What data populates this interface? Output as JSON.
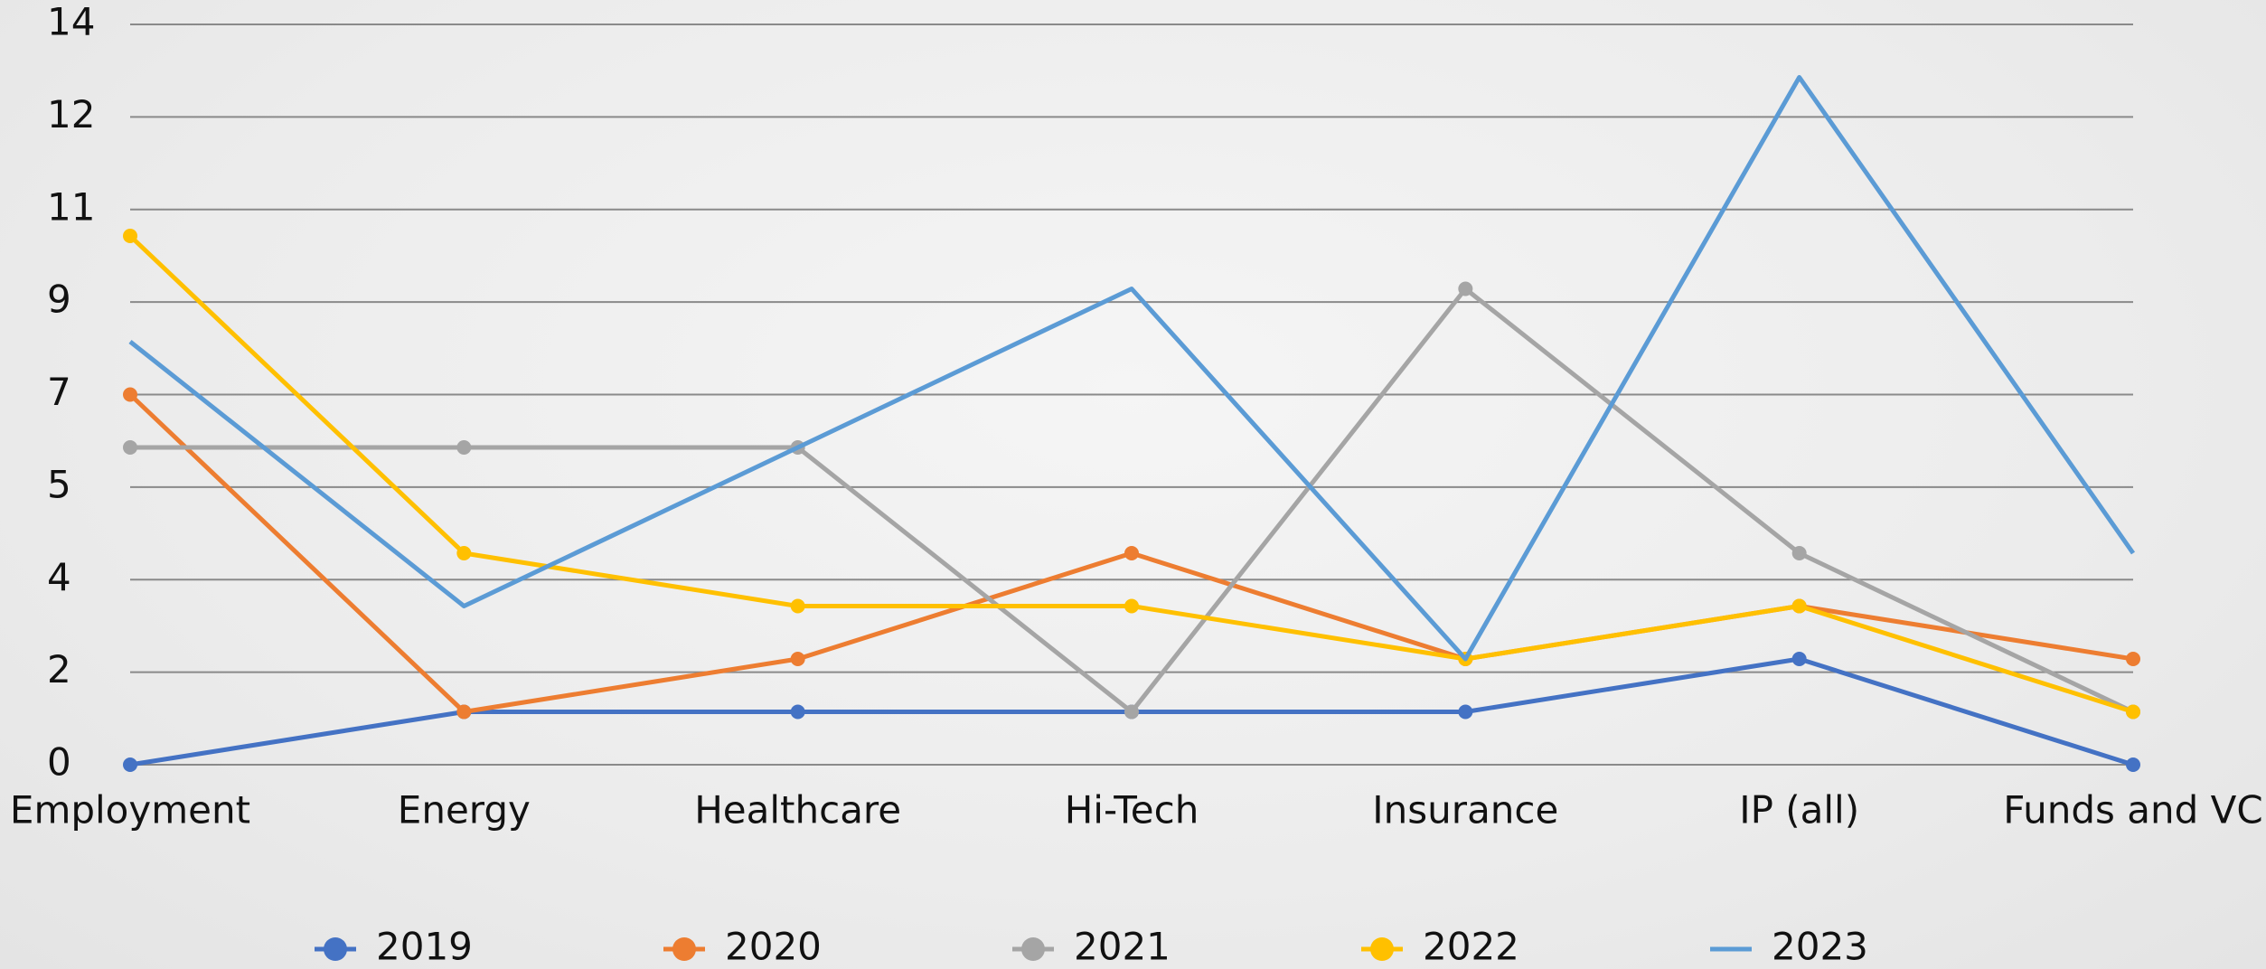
{
  "chart_data": {
    "type": "line",
    "categories": [
      "Employment",
      "Energy",
      "Healthcare",
      "Hi-Tech",
      "Insurance",
      "IP (all)",
      "Funds and VC"
    ],
    "series": [
      {
        "name": "2019",
        "color": "#4472c4",
        "markers": true,
        "values": [
          0,
          1,
          1,
          1,
          1,
          2,
          0
        ]
      },
      {
        "name": "2020",
        "color": "#ed7d31",
        "markers": true,
        "values": [
          7,
          1,
          2,
          4,
          2,
          3,
          2
        ]
      },
      {
        "name": "2021",
        "color": "#a5a5a5",
        "markers": true,
        "values": [
          6,
          6,
          6,
          1,
          9,
          4,
          1
        ]
      },
      {
        "name": "2022",
        "color": "#ffc000",
        "markers": true,
        "values": [
          10,
          4,
          3,
          3,
          2,
          3,
          1
        ]
      },
      {
        "name": "2023",
        "color": "#5b9bd5",
        "markers": false,
        "values": [
          8,
          3,
          6,
          9,
          2,
          13,
          4
        ]
      }
    ],
    "ylim": [
      0,
      14
    ],
    "yticks": [
      0,
      {
        "value": 1.75,
        "label": "2"
      },
      {
        "value": 3.5,
        "label": "4"
      },
      {
        "value": 5.25,
        "label": "5"
      },
      7,
      {
        "value": 8.75,
        "label": "9"
      },
      {
        "value": 10.5,
        "label": "11"
      },
      {
        "value": 12.25,
        "label": "12"
      },
      14
    ],
    "grid": true,
    "legend": "bottom"
  }
}
